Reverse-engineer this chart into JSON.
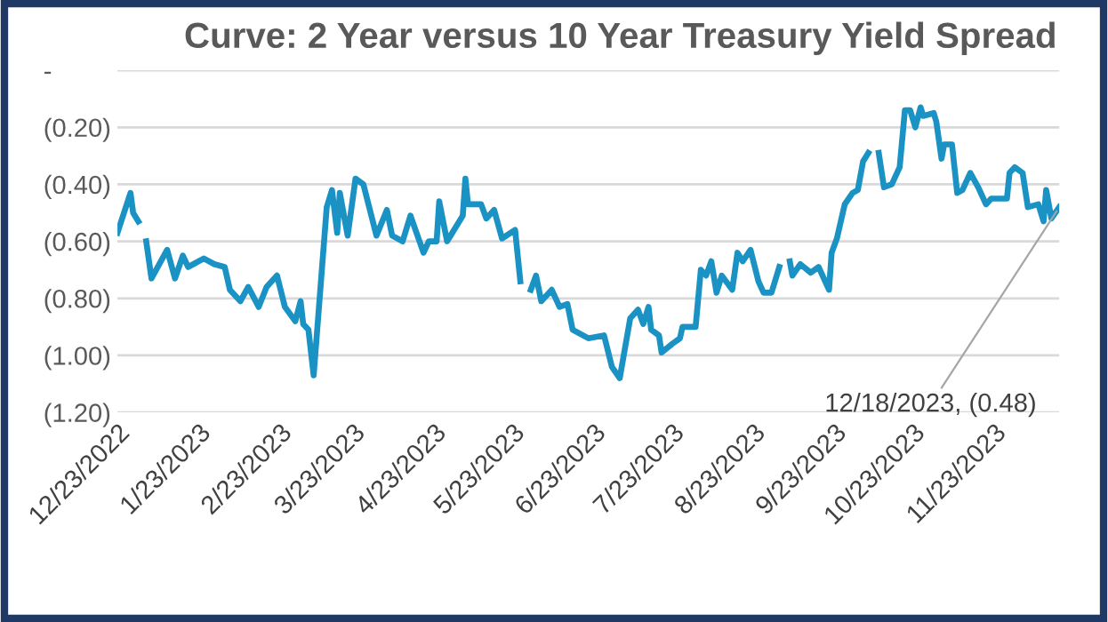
{
  "chart_data": {
    "type": "line",
    "title": "Curve: 2 Year versus 10 Year Treasury Yield Spread",
    "x": [
      "2022-12-23",
      "2022-12-28",
      "2022-12-29",
      "2022-12-31",
      "2023-01-02",
      "2023-01-03",
      "2023-01-05",
      "2023-01-11",
      "2023-01-14",
      "2023-01-17",
      "2023-01-19",
      "2023-01-25",
      "2023-01-29",
      "2023-02-02",
      "2023-02-04",
      "2023-02-08",
      "2023-02-11",
      "2023-02-15",
      "2023-02-18",
      "2023-02-22",
      "2023-02-25",
      "2023-03-01",
      "2023-03-03",
      "2023-03-04",
      "2023-03-06",
      "2023-03-08",
      "2023-03-13",
      "2023-03-15",
      "2023-03-17",
      "2023-03-18",
      "2023-03-21",
      "2023-03-24",
      "2023-03-27",
      "2023-04-01",
      "2023-04-05",
      "2023-04-07",
      "2023-04-11",
      "2023-04-14",
      "2023-04-19",
      "2023-04-21",
      "2023-04-24",
      "2023-04-25",
      "2023-04-28",
      "2023-05-04",
      "2023-05-05",
      "2023-05-06",
      "2023-05-11",
      "2023-05-13",
      "2023-05-16",
      "2023-05-19",
      "2023-05-24",
      "2023-05-26",
      "2023-05-28",
      "2023-05-30",
      "2023-06-01",
      "2023-06-03",
      "2023-06-07",
      "2023-06-10",
      "2023-06-13",
      "2023-06-15",
      "2023-06-21",
      "2023-06-27",
      "2023-06-30",
      "2023-07-03",
      "2023-07-07",
      "2023-07-10",
      "2023-07-12",
      "2023-07-14",
      "2023-07-15",
      "2023-07-18",
      "2023-07-19",
      "2023-07-23",
      "2023-07-26",
      "2023-07-27",
      "2023-08-01",
      "2023-08-03",
      "2023-08-05",
      "2023-08-07",
      "2023-08-09",
      "2023-08-11",
      "2023-08-15",
      "2023-08-17",
      "2023-08-19",
      "2023-08-22",
      "2023-08-25",
      "2023-08-27",
      "2023-08-30",
      "2023-09-02",
      "2023-09-04",
      "2023-09-06",
      "2023-09-07",
      "2023-09-10",
      "2023-09-14",
      "2023-09-17",
      "2023-09-21",
      "2023-09-22",
      "2023-09-24",
      "2023-09-27",
      "2023-09-30",
      "2023-10-02",
      "2023-10-04",
      "2023-10-06",
      "2023-10-08",
      "2023-10-10",
      "2023-10-12",
      "2023-10-15",
      "2023-10-18",
      "2023-10-20",
      "2023-10-22",
      "2023-10-24",
      "2023-10-26",
      "2023-10-27",
      "2023-10-31",
      "2023-11-01",
      "2023-11-03",
      "2023-11-04",
      "2023-11-07",
      "2023-11-09",
      "2023-11-11",
      "2023-11-14",
      "2023-11-17",
      "2023-11-20",
      "2023-11-22",
      "2023-11-28",
      "2023-11-29",
      "2023-12-01",
      "2023-12-04",
      "2023-12-06",
      "2023-12-10",
      "2023-12-12",
      "2023-12-13",
      "2023-12-15",
      "2023-12-18"
    ],
    "series": [
      {
        "color": "#1a93c4",
        "values": [
          -0.57,
          -0.43,
          -0.5,
          -0.53,
          null,
          -0.6,
          -0.73,
          -0.63,
          -0.73,
          -0.65,
          -0.69,
          -0.66,
          -0.68,
          -0.69,
          -0.77,
          -0.81,
          -0.76,
          -0.83,
          -0.76,
          -0.72,
          -0.83,
          -0.88,
          -0.81,
          -0.89,
          -0.91,
          -1.07,
          -0.48,
          -0.42,
          -0.57,
          -0.43,
          -0.58,
          -0.38,
          -0.4,
          -0.58,
          -0.49,
          -0.58,
          -0.6,
          -0.51,
          -0.64,
          -0.6,
          -0.6,
          -0.46,
          -0.6,
          -0.51,
          -0.38,
          -0.47,
          -0.47,
          -0.52,
          -0.49,
          -0.59,
          -0.56,
          -0.74,
          null,
          -0.77,
          -0.72,
          -0.81,
          -0.77,
          -0.83,
          -0.82,
          -0.91,
          -0.94,
          -0.93,
          -1.04,
          -1.08,
          -0.87,
          -0.84,
          -0.89,
          -0.83,
          -0.91,
          -0.93,
          -0.99,
          -0.96,
          -0.94,
          -0.9,
          -0.9,
          -0.7,
          -0.72,
          -0.67,
          -0.78,
          -0.72,
          -0.77,
          -0.64,
          -0.67,
          -0.63,
          -0.74,
          -0.78,
          -0.78,
          -0.69,
          null,
          -0.67,
          -0.72,
          -0.68,
          -0.71,
          -0.69,
          -0.77,
          -0.64,
          -0.59,
          -0.47,
          -0.43,
          -0.42,
          -0.32,
          -0.29,
          null,
          -0.29,
          -0.41,
          -0.4,
          -0.34,
          -0.14,
          -0.14,
          -0.2,
          -0.13,
          -0.16,
          -0.15,
          -0.18,
          -0.31,
          -0.26,
          -0.26,
          -0.43,
          -0.42,
          -0.36,
          -0.41,
          -0.47,
          -0.45,
          -0.45,
          -0.36,
          -0.34,
          -0.36,
          -0.48,
          -0.47,
          -0.53,
          -0.42,
          -0.52,
          -0.48
        ]
      }
    ],
    "xlim": [
      "2022-12-23",
      "2023-12-18"
    ],
    "xticks": [
      {
        "value": "2022-12-23",
        "label": "12/23/2022"
      },
      {
        "value": "2023-01-23",
        "label": "1/23/2023"
      },
      {
        "value": "2023-02-23",
        "label": "2/23/2023"
      },
      {
        "value": "2023-03-23",
        "label": "3/23/2023"
      },
      {
        "value": "2023-04-23",
        "label": "4/23/2023"
      },
      {
        "value": "2023-05-23",
        "label": "5/23/2023"
      },
      {
        "value": "2023-06-23",
        "label": "6/23/2023"
      },
      {
        "value": "2023-07-23",
        "label": "7/23/2023"
      },
      {
        "value": "2023-08-23",
        "label": "8/23/2023"
      },
      {
        "value": "2023-09-23",
        "label": "9/23/2023"
      },
      {
        "value": "2023-10-23",
        "label": "10/23/2023"
      },
      {
        "value": "2023-11-23",
        "label": "11/23/2023"
      }
    ],
    "ylim": [
      -1.2,
      0
    ],
    "yticks": [
      {
        "value": 0,
        "label": "-"
      },
      {
        "value": -0.2,
        "label": "(0.20)"
      },
      {
        "value": -0.4,
        "label": "(0.40)"
      },
      {
        "value": -0.6,
        "label": "(0.60)"
      },
      {
        "value": -0.8,
        "label": "(0.80)"
      },
      {
        "value": -1.0,
        "label": "(1.00)"
      },
      {
        "value": -1.2,
        "label": "(1.20)"
      }
    ],
    "grid": "y",
    "marker": "none",
    "line_style": "solid",
    "annotations": [
      {
        "text": "12/18/2023, (0.48)",
        "x": "2023-12-18",
        "y": -0.48
      }
    ]
  }
}
